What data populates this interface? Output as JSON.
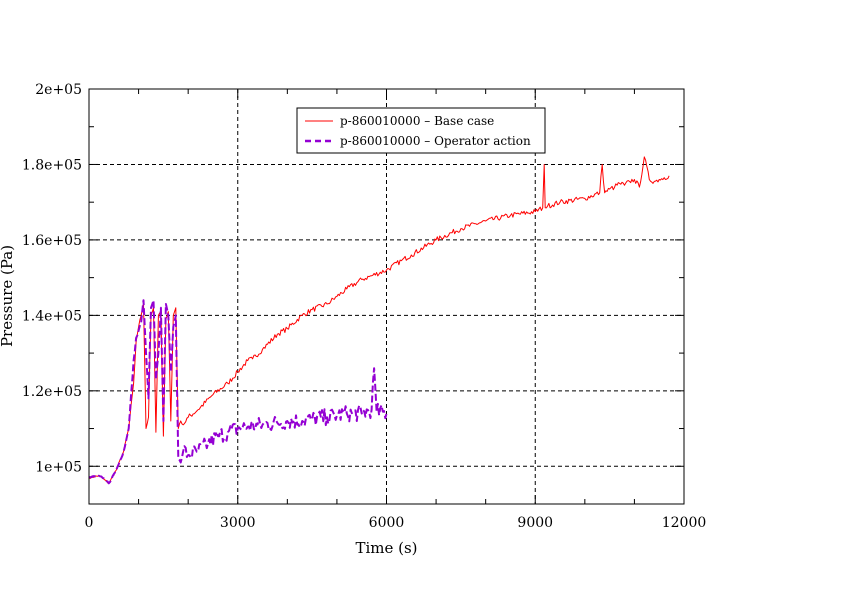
{
  "chart_data": {
    "type": "line",
    "xlabel": "Time (s)",
    "ylabel": "Pressure (Pa)",
    "xlim": [
      0,
      12000
    ],
    "ylim": [
      90000,
      200000
    ],
    "x_ticks": [
      0,
      3000,
      6000,
      9000,
      12000
    ],
    "x_tick_labels": [
      "0",
      "3000",
      "6000",
      "9000",
      "12000"
    ],
    "y_ticks": [
      100000,
      120000,
      140000,
      160000,
      180000,
      200000
    ],
    "y_tick_labels": [
      "1e+05",
      "1.2e+05",
      "1.4e+05",
      "1.6e+05",
      "1.8e+05",
      "2e+05"
    ],
    "grid": true,
    "legend_position": "top-center",
    "series": [
      {
        "name": "p-860010000 – Base case",
        "color": "#ff0000",
        "style": "solid",
        "x": [
          0,
          200,
          400,
          550,
          700,
          800,
          900,
          950,
          1000,
          1050,
          1100,
          1150,
          1200,
          1250,
          1300,
          1350,
          1400,
          1450,
          1500,
          1550,
          1600,
          1650,
          1700,
          1750,
          1800,
          1850,
          1900,
          2000,
          2200,
          2500,
          2800,
          3000,
          3200,
          3300,
          3500,
          3800,
          4000,
          4300,
          4500,
          4800,
          5000,
          5200,
          5500,
          5700,
          6000,
          6300,
          6500,
          7000,
          7500,
          8000,
          8500,
          9000,
          9150,
          9180,
          9200,
          9250,
          9500,
          10000,
          10300,
          10350,
          10400,
          10500,
          10600,
          10700,
          10800,
          10900,
          11000,
          11100,
          11200,
          11300,
          11400,
          11500,
          11600,
          11700
        ],
        "y": [
          97000,
          97500,
          95500,
          99000,
          104000,
          110000,
          122000,
          133000,
          137000,
          140000,
          143000,
          110000,
          113000,
          140000,
          142000,
          109000,
          140000,
          141000,
          108000,
          139000,
          141000,
          112000,
          140000,
          142000,
          110000,
          112000,
          111000,
          113000,
          115000,
          119000,
          122000,
          125000,
          128000,
          128500,
          131000,
          135000,
          136500,
          140000,
          141500,
          143000,
          145000,
          147000,
          149500,
          150500,
          152000,
          154500,
          156000,
          160000,
          163000,
          165000,
          166500,
          167500,
          168500,
          180000,
          168500,
          169000,
          170000,
          171000,
          172500,
          180000,
          172500,
          173500,
          174000,
          175000,
          174500,
          175500,
          176000,
          174000,
          182000,
          176000,
          175500,
          176000,
          176500,
          177000
        ]
      },
      {
        "name": "p-860010000 – Operator action",
        "color": "#9400d3",
        "style": "dashed",
        "x": [
          0,
          200,
          400,
          550,
          700,
          800,
          900,
          950,
          1000,
          1050,
          1100,
          1150,
          1200,
          1250,
          1300,
          1350,
          1400,
          1450,
          1500,
          1550,
          1600,
          1650,
          1700,
          1750,
          1800,
          1850,
          1900,
          2000,
          2200,
          2400,
          2600,
          2800,
          3000,
          3200,
          3500,
          3800,
          4000,
          4300,
          4500,
          4800,
          5000,
          5200,
          5500,
          5700,
          5750,
          5800,
          6000
        ],
        "y": [
          97000,
          97500,
          95500,
          99000,
          104000,
          110000,
          128000,
          134000,
          136000,
          138000,
          144000,
          130000,
          118000,
          142000,
          144000,
          123000,
          130000,
          142000,
          112000,
          143000,
          140000,
          125000,
          137000,
          140000,
          102000,
          101000,
          104000,
          103000,
          104000,
          106000,
          108000,
          109000,
          110000,
          110500,
          111000,
          111500,
          112000,
          112000,
          112500,
          113000,
          113500,
          114000,
          114000,
          115000,
          126000,
          114500,
          114000
        ]
      }
    ]
  }
}
